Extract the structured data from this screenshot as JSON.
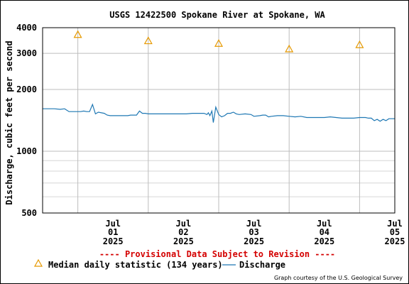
{
  "chart_data": {
    "type": "line",
    "title": "USGS 12422500 Spokane River at Spokane, WA",
    "ylabel": "Discharge, cubic feet per second",
    "y_scale": "log",
    "ylim": [
      500,
      4000
    ],
    "y_ticks": [
      {
        "value": 500,
        "label": "500"
      },
      {
        "value": 1000,
        "label": "1000"
      },
      {
        "value": 2000,
        "label": "2000"
      },
      {
        "value": 3000,
        "label": "3000"
      },
      {
        "value": 4000,
        "label": "4000"
      }
    ],
    "y_minor_gridlines": [
      600,
      700,
      800,
      900
    ],
    "x_range": [
      "2025-06-30 12:00",
      "2025-07-05 12:00"
    ],
    "x_ticks": [
      {
        "date": "2025-07-01",
        "month": "Jul",
        "day": "01",
        "year": "2025"
      },
      {
        "date": "2025-07-02",
        "month": "Jul",
        "day": "02",
        "year": "2025"
      },
      {
        "date": "2025-07-03",
        "month": "Jul",
        "day": "03",
        "year": "2025"
      },
      {
        "date": "2025-07-04",
        "month": "Jul",
        "day": "04",
        "year": "2025"
      },
      {
        "date": "2025-07-05",
        "month": "Jul",
        "day": "05",
        "year": "2025"
      }
    ],
    "grid": true,
    "series": [
      {
        "name": "Discharge",
        "color": "#1f78b4",
        "points": [
          [
            "2025-06-30 12:00",
            1610
          ],
          [
            "2025-06-30 14:00",
            1610
          ],
          [
            "2025-06-30 16:00",
            1610
          ],
          [
            "2025-06-30 18:00",
            1600
          ],
          [
            "2025-06-30 19:30",
            1610
          ],
          [
            "2025-06-30 21:00",
            1560
          ],
          [
            "2025-06-30 23:00",
            1560
          ],
          [
            "2025-07-01 01:00",
            1560
          ],
          [
            "2025-07-01 02:00",
            1570
          ],
          [
            "2025-07-01 03:00",
            1560
          ],
          [
            "2025-07-01 04:00",
            1560
          ],
          [
            "2025-07-01 05:00",
            1690
          ],
          [
            "2025-07-01 06:00",
            1520
          ],
          [
            "2025-07-01 07:00",
            1550
          ],
          [
            "2025-07-01 09:00",
            1530
          ],
          [
            "2025-07-01 10:00",
            1500
          ],
          [
            "2025-07-01 11:00",
            1490
          ],
          [
            "2025-07-01 13:00",
            1490
          ],
          [
            "2025-07-01 15:00",
            1490
          ],
          [
            "2025-07-01 17:00",
            1490
          ],
          [
            "2025-07-01 18:00",
            1500
          ],
          [
            "2025-07-01 20:00",
            1500
          ],
          [
            "2025-07-01 21:00",
            1570
          ],
          [
            "2025-07-01 22:00",
            1530
          ],
          [
            "2025-07-01 23:00",
            1530
          ],
          [
            "2025-07-02 00:00",
            1520
          ],
          [
            "2025-07-02 01:00",
            1520
          ],
          [
            "2025-07-02 03:00",
            1520
          ],
          [
            "2025-07-02 05:00",
            1520
          ],
          [
            "2025-07-02 07:00",
            1520
          ],
          [
            "2025-07-02 09:00",
            1520
          ],
          [
            "2025-07-02 11:00",
            1520
          ],
          [
            "2025-07-02 13:00",
            1520
          ],
          [
            "2025-07-02 15:00",
            1530
          ],
          [
            "2025-07-02 17:00",
            1530
          ],
          [
            "2025-07-02 19:00",
            1530
          ],
          [
            "2025-07-02 20:00",
            1510
          ],
          [
            "2025-07-02 20:30",
            1540
          ],
          [
            "2025-07-02 21:00",
            1490
          ],
          [
            "2025-07-02 21:40",
            1570
          ],
          [
            "2025-07-02 22:10",
            1380
          ],
          [
            "2025-07-02 23:00",
            1640
          ],
          [
            "2025-07-03 00:00",
            1510
          ],
          [
            "2025-07-03 01:00",
            1470
          ],
          [
            "2025-07-03 02:00",
            1490
          ],
          [
            "2025-07-03 03:00",
            1530
          ],
          [
            "2025-07-03 04:00",
            1530
          ],
          [
            "2025-07-03 05:00",
            1550
          ],
          [
            "2025-07-03 06:00",
            1520
          ],
          [
            "2025-07-03 07:00",
            1510
          ],
          [
            "2025-07-03 09:00",
            1520
          ],
          [
            "2025-07-03 11:00",
            1510
          ],
          [
            "2025-07-03 12:00",
            1480
          ],
          [
            "2025-07-03 14:00",
            1490
          ],
          [
            "2025-07-03 15:00",
            1500
          ],
          [
            "2025-07-03 16:00",
            1500
          ],
          [
            "2025-07-03 17:00",
            1470
          ],
          [
            "2025-07-03 18:00",
            1480
          ],
          [
            "2025-07-03 20:00",
            1490
          ],
          [
            "2025-07-03 22:00",
            1490
          ],
          [
            "2025-07-04 00:00",
            1480
          ],
          [
            "2025-07-04 02:00",
            1470
          ],
          [
            "2025-07-04 04:00",
            1480
          ],
          [
            "2025-07-04 06:00",
            1460
          ],
          [
            "2025-07-04 08:00",
            1460
          ],
          [
            "2025-07-04 10:00",
            1460
          ],
          [
            "2025-07-04 12:00",
            1460
          ],
          [
            "2025-07-04 14:00",
            1470
          ],
          [
            "2025-07-04 16:00",
            1460
          ],
          [
            "2025-07-04 18:00",
            1450
          ],
          [
            "2025-07-04 20:00",
            1450
          ],
          [
            "2025-07-04 22:00",
            1450
          ],
          [
            "2025-07-05 00:00",
            1460
          ],
          [
            "2025-07-05 02:00",
            1460
          ],
          [
            "2025-07-05 03:00",
            1450
          ],
          [
            "2025-07-05 04:00",
            1450
          ],
          [
            "2025-07-05 05:00",
            1410
          ],
          [
            "2025-07-05 06:00",
            1430
          ],
          [
            "2025-07-05 07:00",
            1400
          ],
          [
            "2025-07-05 08:00",
            1430
          ],
          [
            "2025-07-05 09:00",
            1410
          ],
          [
            "2025-07-05 10:00",
            1440
          ],
          [
            "2025-07-05 11:00",
            1440
          ],
          [
            "2025-07-05 12:00",
            1440
          ]
        ]
      },
      {
        "name": "Median daily statistic (134 years)",
        "color": "#e69900",
        "marker": "triangle",
        "points": [
          [
            "2025-07-01",
            3700
          ],
          [
            "2025-07-02",
            3450
          ],
          [
            "2025-07-03",
            3350
          ],
          [
            "2025-07-04",
            3150
          ],
          [
            "2025-07-05",
            3300
          ]
        ]
      }
    ]
  },
  "notice": "---- Provisional Data Subject to Revision ----",
  "notice_color": "#d40000",
  "legend": {
    "median_label": "Median daily statistic (134 years)",
    "discharge_label": "Discharge"
  },
  "credit": "Graph courtesy of the U.S. Geological Survey"
}
